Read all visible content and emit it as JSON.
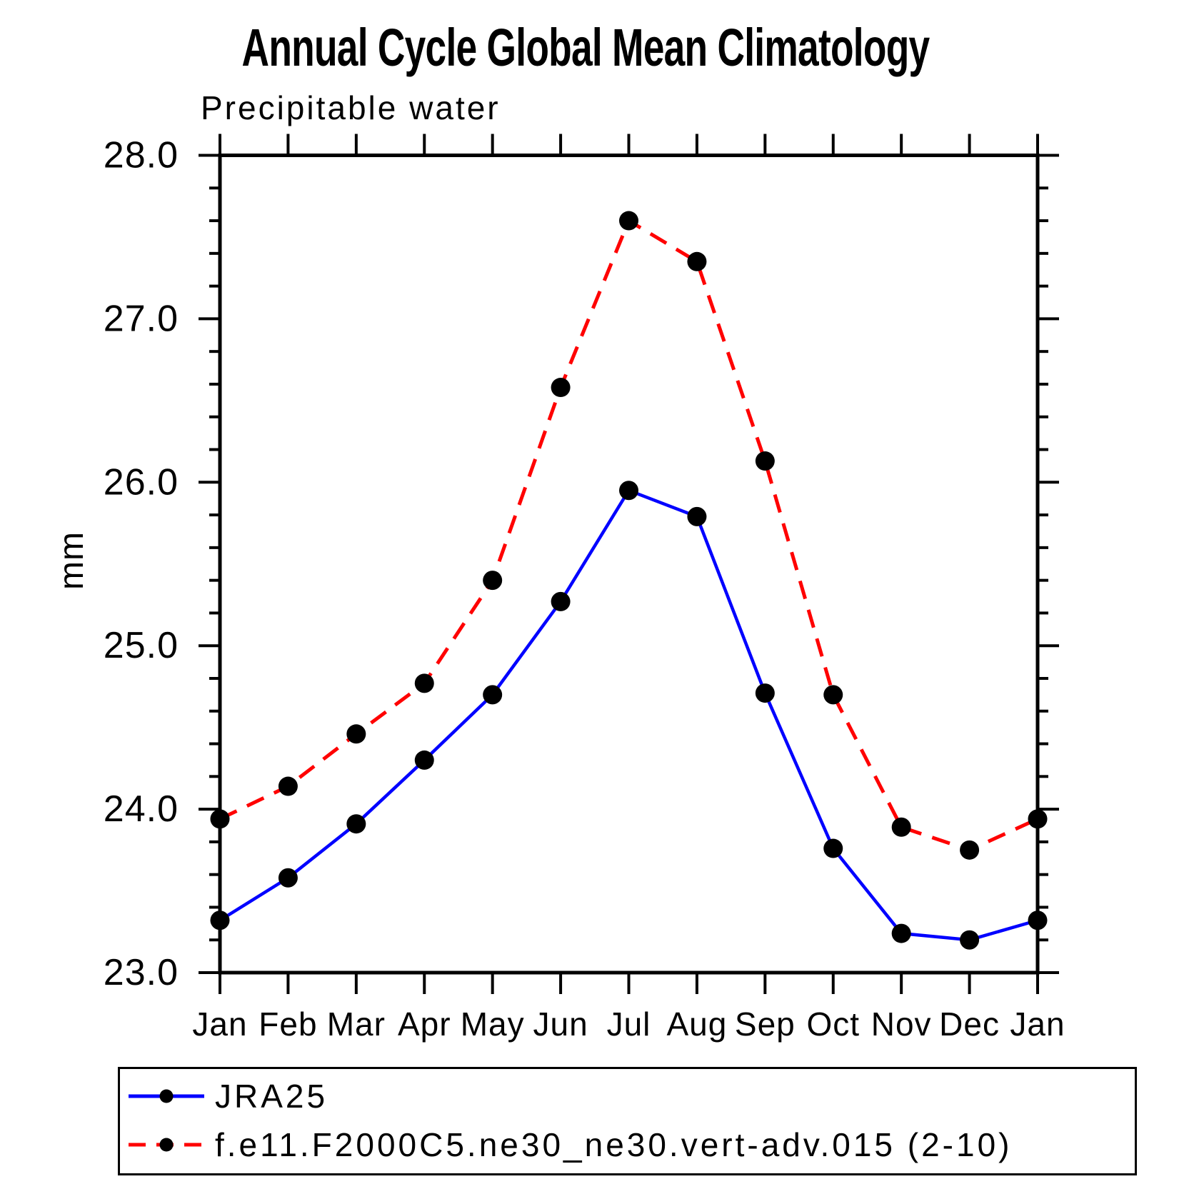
{
  "page_title": "Annual Cycle Global Mean Climatology",
  "chart_data": {
    "type": "line",
    "title": "Annual Cycle Global Mean Climatology",
    "subtitle": "Precipitable water",
    "xlabel": "",
    "ylabel": "mm",
    "categories": [
      "Jan",
      "Feb",
      "Mar",
      "Apr",
      "May",
      "Jun",
      "Jul",
      "Aug",
      "Sep",
      "Oct",
      "Nov",
      "Dec",
      "Jan"
    ],
    "ylim": [
      23.0,
      28.0
    ],
    "ytick_major": 1.0,
    "ytick_minor": 0.2,
    "ytick_label_format": "one_decimal",
    "grid": false,
    "legend_position": "bottom-left-box",
    "marker_color": "#000000",
    "axis_color": "#000000",
    "series": [
      {
        "name": "JRA25",
        "color": "#0000ff",
        "style": "solid",
        "marker": "circle",
        "values": [
          23.32,
          23.58,
          23.91,
          24.3,
          24.7,
          25.27,
          25.95,
          25.79,
          24.71,
          23.76,
          23.24,
          23.2,
          23.32
        ]
      },
      {
        "name": "f.e11.F2000C5.ne30_ne30.vert-adv.015 (2-10)",
        "color": "#ff0000",
        "style": "dashed",
        "marker": "circle",
        "values": [
          23.94,
          24.14,
          24.46,
          24.77,
          25.4,
          26.58,
          27.6,
          27.35,
          26.13,
          24.7,
          23.89,
          23.75,
          23.94
        ]
      }
    ]
  }
}
